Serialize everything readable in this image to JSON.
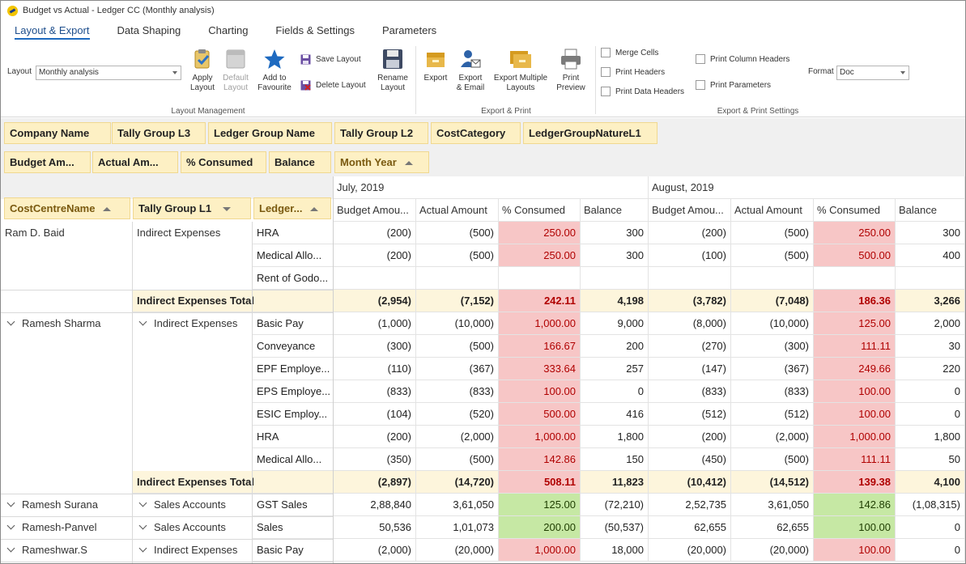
{
  "window": {
    "title": "Budget vs Actual - Ledger CC (Monthly analysis)"
  },
  "tabs": [
    "Layout & Export",
    "Data Shaping",
    "Charting",
    "Fields & Settings",
    "Parameters"
  ],
  "ribbon": {
    "layout_label": "Layout",
    "layout_value": "Monthly analysis",
    "apply_layout": "Apply\nLayout",
    "default_layout": "Default\nLayout",
    "add_to_favourite": "Add to\nFavourite",
    "save_layout": "Save Layout",
    "delete_layout": "Delete Layout",
    "rename_layout": "Rename\nLayout",
    "layout_management": "Layout Management",
    "export": "Export",
    "export_email": "Export\n& Email",
    "export_multiple": "Export Multiple\nLayouts",
    "print_preview": "Print\nPreview",
    "export_print": "Export & Print",
    "merge_cells": "Merge Cells",
    "print_headers": "Print Headers",
    "print_data_headers": "Print Data Headers",
    "print_column_headers": "Print Column Headers",
    "print_parameters": "Print Parameters",
    "format_label": "Format",
    "format_value": "Doc",
    "export_print_settings": "Export & Print Settings"
  },
  "filter_fields": [
    "Company Name",
    "Tally Group L3",
    "Ledger Group Name",
    "Tally Group L2",
    "CostCategory",
    "LedgerGroupNatureL1"
  ],
  "data_fields": [
    "Budget Am...",
    "Actual Am...",
    "% Consumed",
    "Balance"
  ],
  "column_field": "Month Year",
  "row_fields": [
    "CostCentreName",
    "Tally Group L1",
    "Ledger..."
  ],
  "months": [
    "July, 2019",
    "August, 2019"
  ],
  "value_headers": [
    "Budget Amou...",
    "Actual Amount",
    "% Consumed",
    "Balance"
  ],
  "rows": [
    {
      "cc": "Ram D. Baid",
      "grp": "Indirect Expenses",
      "ledger": "HRA",
      "v": [
        "(200)",
        "(500)",
        "250.00",
        "300",
        "(200)",
        "(500)",
        "250.00",
        "300"
      ],
      "c": [
        "",
        "",
        "red",
        "",
        "",
        "",
        "red",
        ""
      ]
    },
    {
      "cc": "",
      "grp": "",
      "ledger": "Medical Allo...",
      "v": [
        "(200)",
        "(500)",
        "250.00",
        "300",
        "(100)",
        "(500)",
        "500.00",
        "400"
      ],
      "c": [
        "",
        "",
        "red",
        "",
        "",
        "",
        "red",
        ""
      ]
    },
    {
      "cc": "",
      "grp": "",
      "ledger": "Rent of Godo...",
      "v": [
        "",
        "",
        "",
        "",
        "",
        "",
        "",
        ""
      ],
      "c": [
        "",
        "",
        "",
        "",
        "",
        "",
        "",
        ""
      ]
    },
    {
      "total": true,
      "label": "Indirect Expenses Total",
      "v": [
        "(2,954)",
        "(7,152)",
        "242.11",
        "4,198",
        "(3,782)",
        "(7,048)",
        "186.36",
        "3,266"
      ],
      "c": [
        "",
        "",
        "red",
        "",
        "",
        "",
        "red",
        ""
      ]
    },
    {
      "cc": "Ramesh Sharma",
      "ccchev": true,
      "grp": "Indirect Expenses",
      "grpchev": true,
      "ledger": "Basic Pay",
      "v": [
        "(1,000)",
        "(10,000)",
        "1,000.00",
        "9,000",
        "(8,000)",
        "(10,000)",
        "125.00",
        "2,000"
      ],
      "c": [
        "",
        "",
        "red",
        "",
        "",
        "",
        "red",
        ""
      ]
    },
    {
      "cc": "",
      "grp": "",
      "ledger": "Conveyance",
      "v": [
        "(300)",
        "(500)",
        "166.67",
        "200",
        "(270)",
        "(300)",
        "111.11",
        "30"
      ],
      "c": [
        "",
        "",
        "red",
        "",
        "",
        "",
        "red",
        ""
      ]
    },
    {
      "cc": "",
      "grp": "",
      "ledger": "EPF Employe...",
      "v": [
        "(110)",
        "(367)",
        "333.64",
        "257",
        "(147)",
        "(367)",
        "249.66",
        "220"
      ],
      "c": [
        "",
        "",
        "red",
        "",
        "",
        "",
        "red",
        ""
      ]
    },
    {
      "cc": "",
      "grp": "",
      "ledger": "EPS Employe...",
      "v": [
        "(833)",
        "(833)",
        "100.00",
        "0",
        "(833)",
        "(833)",
        "100.00",
        "0"
      ],
      "c": [
        "",
        "",
        "red",
        "",
        "",
        "",
        "red",
        ""
      ]
    },
    {
      "cc": "",
      "grp": "",
      "ledger": "ESIC Employ...",
      "v": [
        "(104)",
        "(520)",
        "500.00",
        "416",
        "(512)",
        "(512)",
        "100.00",
        "0"
      ],
      "c": [
        "",
        "",
        "red",
        "",
        "",
        "",
        "red",
        ""
      ]
    },
    {
      "cc": "",
      "grp": "",
      "ledger": "HRA",
      "v": [
        "(200)",
        "(2,000)",
        "1,000.00",
        "1,800",
        "(200)",
        "(2,000)",
        "1,000.00",
        "1,800"
      ],
      "c": [
        "",
        "",
        "red",
        "",
        "",
        "",
        "red",
        ""
      ]
    },
    {
      "cc": "",
      "grp": "",
      "ledger": "Medical Allo...",
      "v": [
        "(350)",
        "(500)",
        "142.86",
        "150",
        "(450)",
        "(500)",
        "111.11",
        "50"
      ],
      "c": [
        "",
        "",
        "red",
        "",
        "",
        "",
        "red",
        ""
      ]
    },
    {
      "total": true,
      "label": "Indirect Expenses Total",
      "v": [
        "(2,897)",
        "(14,720)",
        "508.11",
        "11,823",
        "(10,412)",
        "(14,512)",
        "139.38",
        "4,100"
      ],
      "c": [
        "",
        "",
        "red",
        "",
        "",
        "",
        "red",
        ""
      ]
    },
    {
      "cc": "Ramesh Surana",
      "ccchev": true,
      "grp": "Sales Accounts",
      "grpchev": true,
      "ledger": "GST Sales",
      "v": [
        "2,88,840",
        "3,61,050",
        "125.00",
        "(72,210)",
        "2,52,735",
        "3,61,050",
        "142.86",
        "(1,08,315)"
      ],
      "c": [
        "",
        "",
        "green",
        "",
        "",
        "",
        "green",
        ""
      ]
    },
    {
      "cc": "Ramesh-Panvel",
      "ccchev": true,
      "grp": "Sales Accounts",
      "grpchev": true,
      "ledger": "Sales",
      "v": [
        "50,536",
        "1,01,073",
        "200.00",
        "(50,537)",
        "62,655",
        "62,655",
        "100.00",
        "0"
      ],
      "c": [
        "",
        "",
        "green",
        "",
        "",
        "",
        "green",
        ""
      ]
    },
    {
      "cc": "Rameshwar.S",
      "ccchev": true,
      "grp": "Indirect Expenses",
      "grpchev": true,
      "ledger": "Basic Pay",
      "v": [
        "(2,000)",
        "(20,000)",
        "1,000.00",
        "18,000",
        "(20,000)",
        "(20,000)",
        "100.00",
        "0"
      ],
      "c": [
        "",
        "",
        "red",
        "",
        "",
        "",
        "red",
        ""
      ]
    }
  ]
}
